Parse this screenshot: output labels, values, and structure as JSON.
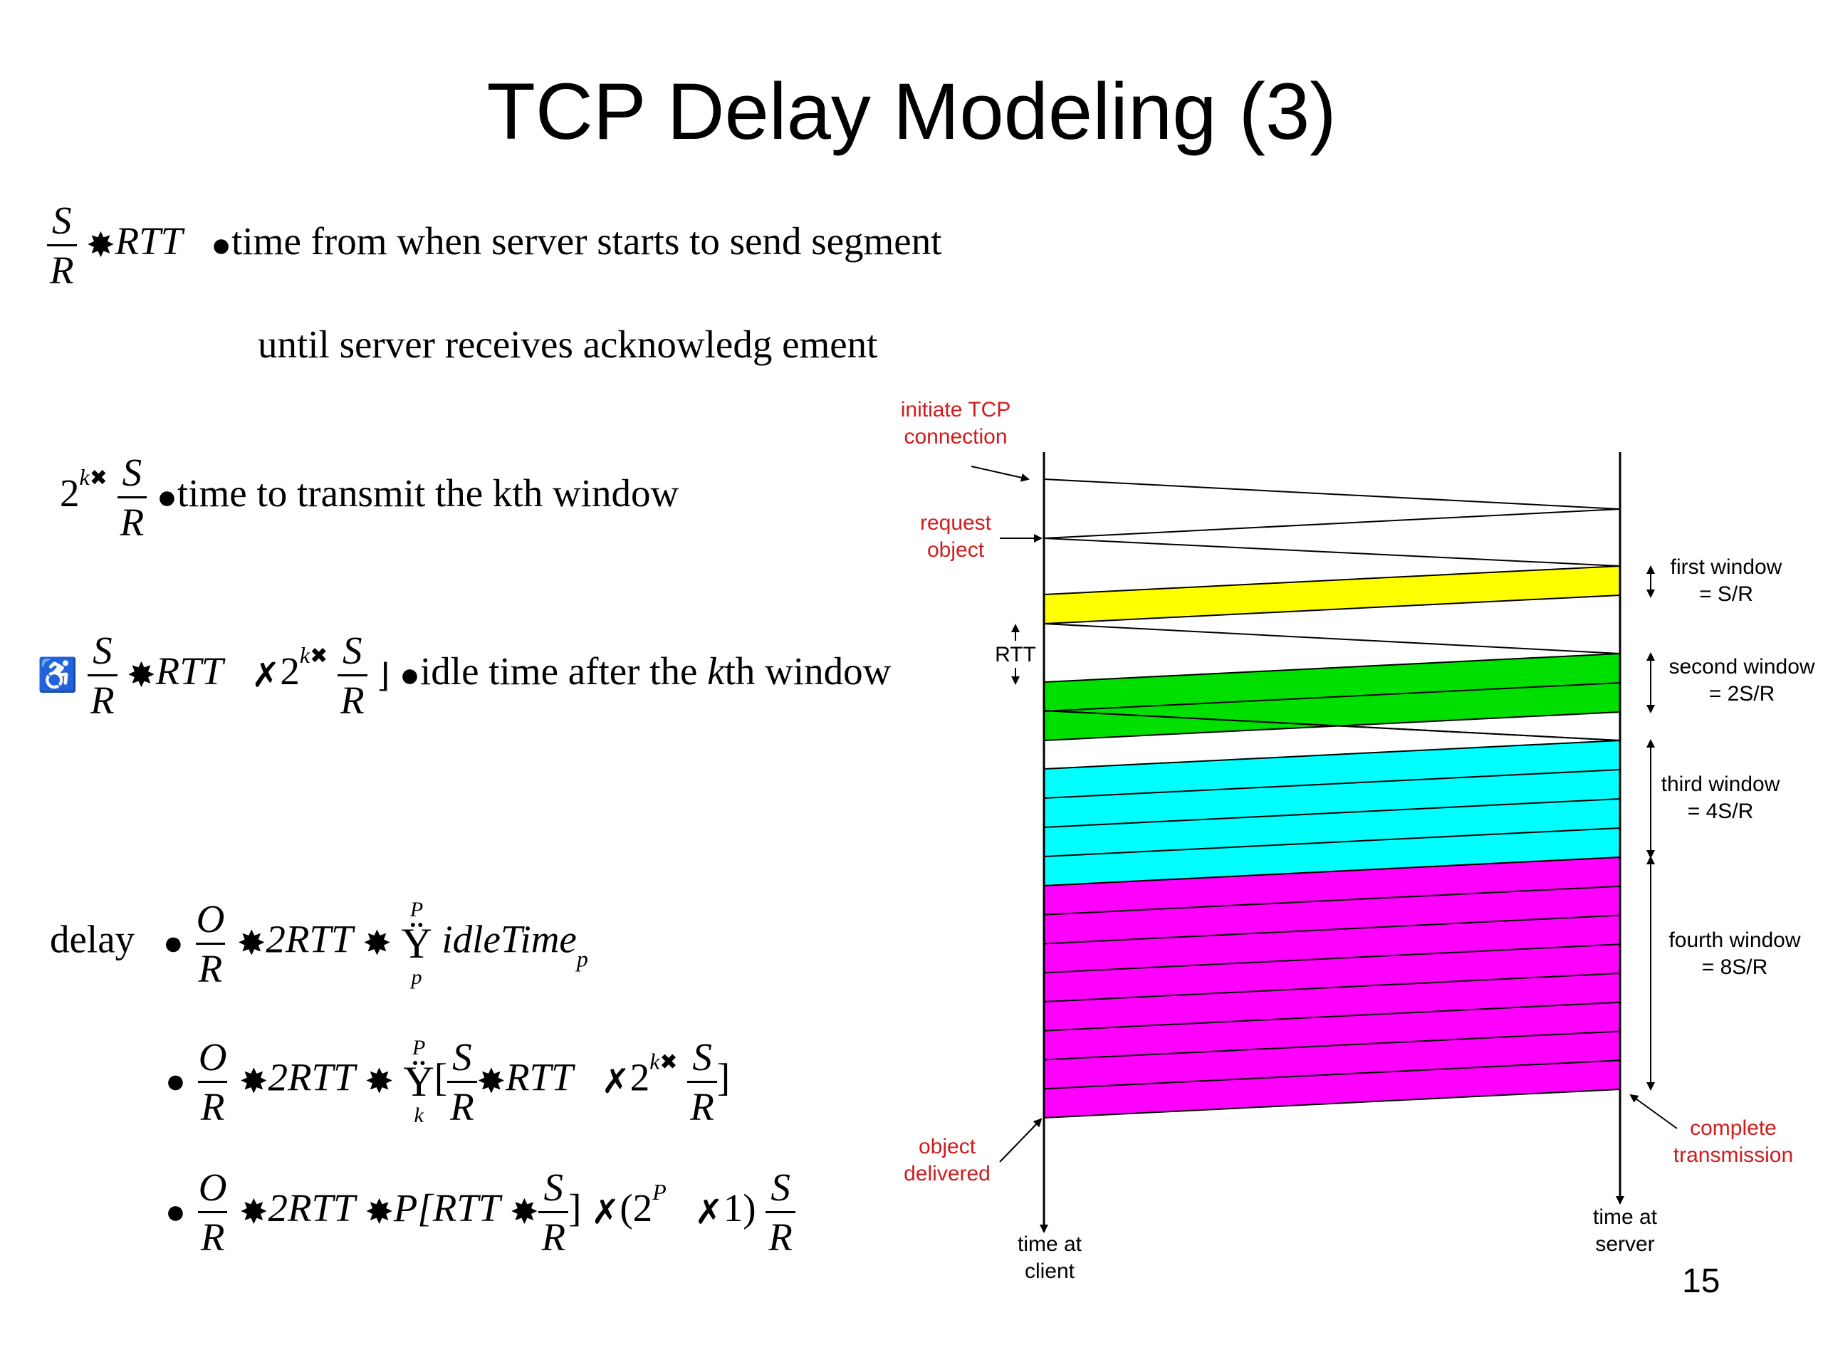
{
  "title": "TCP Delay Modeling (3)",
  "equations": {
    "rtt_segment": {
      "lhs_num": "S",
      "lhs_den": "R",
      "term": "RTT",
      "line1": "time  from  when  server  starts  to send  segment",
      "line2": "until  server  receives  acknowledg ement"
    },
    "kth_window": {
      "base": "2",
      "exp": "k",
      "frac_num": "S",
      "frac_den": "R",
      "text": "time  to transmit   the  kth  window"
    },
    "idle_time": {
      "frac_num": "S",
      "frac_den": "R",
      "term": "RTT",
      "base": "2",
      "exp": "k",
      "frac2_num": "S",
      "frac2_den": "R",
      "text_a": "idle  time  after the ",
      "text_k": "k",
      "text_b": "th window"
    },
    "delay": {
      "label": "delay",
      "line1": {
        "frac_num": "O",
        "frac_den": "R",
        "term": "2RTT",
        "sum_top": "P",
        "sum_bottom": "p",
        "idle": "idleTime",
        "idle_sub": "p"
      },
      "line2": {
        "frac_num": "O",
        "frac_den": "R",
        "term": "2RTT",
        "sum_top": "P",
        "sum_bottom": "k",
        "inner_num": "S",
        "inner_den": "R",
        "inner_term": "RTT",
        "base": "2",
        "exp": "k",
        "last_num": "S",
        "last_den": "R"
      },
      "line3": {
        "frac_num": "O",
        "frac_den": "R",
        "term": "2RTT",
        "p_term": "P[RTT",
        "inner_num": "S",
        "inner_den": "R",
        "base": "(2",
        "exp": "P",
        "tail": "1)",
        "last_num": "S",
        "last_den": "R"
      }
    }
  },
  "diagram": {
    "labels": {
      "initiate_tcp": [
        "initiate TCP",
        "connection"
      ],
      "request_object": [
        "request",
        "object"
      ],
      "rtt": "RTT",
      "object_delivered": [
        "object",
        "delivered"
      ],
      "time_at_client": [
        "time at",
        "client"
      ],
      "time_at_server": [
        "time at",
        "server"
      ],
      "complete_transmission": [
        "complete",
        "transmission"
      ],
      "first_window": [
        "first window",
        "= S/R"
      ],
      "second_window": [
        "second window",
        "= 2S/R"
      ],
      "third_window": [
        "third window",
        "= 4S/R"
      ],
      "fourth_window": [
        "fourth window",
        "= 8S/R"
      ]
    },
    "colors": {
      "label_red": "#d01c1c",
      "first_window": "#ffff00",
      "second_window": "#00e000",
      "third_window": "#00ffff",
      "fourth_window": "#ff00ff"
    },
    "window_segments": [
      1,
      2,
      4,
      8
    ]
  },
  "page_number": "15"
}
